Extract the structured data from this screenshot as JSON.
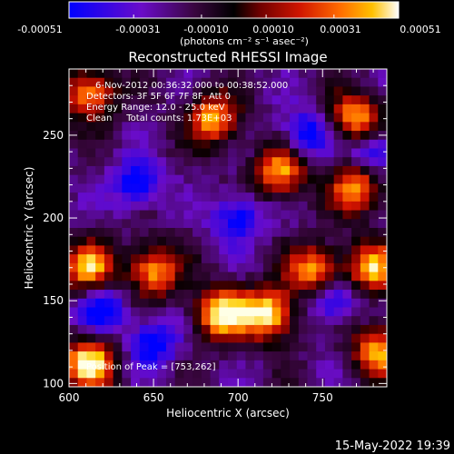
{
  "colorbar": {
    "tick_labels": [
      "-0.00051",
      "-0.00031",
      "-0.00010",
      "0.00010",
      "0.00031",
      "0.00051"
    ],
    "units_label": "(photons cm⁻² s⁻¹ asec⁻²)"
  },
  "plot": {
    "title": "Reconstructed RHESSI Image",
    "info_lines": [
      "6-Nov-2012 00:36:32.000 to 00:38:52.000",
      "Detectors: 3F 5F 6F 7F 8F, Att 0",
      "Energy Range: 12.0 - 25.0 keV",
      "Clean     Total counts: 1.73E+03"
    ],
    "peak_label": "Position of Peak = [753,262]",
    "footer_timestamp": "15-May-2022 19:39"
  },
  "chart_data": {
    "type": "heatmap",
    "title": "Reconstructed RHESSI Image",
    "xlabel": "Heliocentric X (arcsec)",
    "ylabel": "Heliocentric Y (arcsec)",
    "xlim": [
      600,
      788
    ],
    "ylim": [
      98,
      290
    ],
    "x_ticks": [
      600,
      650,
      700,
      750
    ],
    "y_ticks": [
      100,
      150,
      200,
      250
    ],
    "colorbar_range": [
      -0.00051,
      0.00051
    ],
    "colorbar_ticks": [
      -0.00051,
      -0.00031,
      -0.0001,
      0.0001,
      0.00031,
      0.00051
    ],
    "colormap": [
      "#0000ff",
      "#5a00b0",
      "#200020",
      "#000000",
      "#8a0000",
      "#e02000",
      "#ff7000",
      "#ffd000",
      "#ffffe0"
    ],
    "bright_sources_xy": [
      [
        612,
        112
      ],
      [
        690,
        142
      ],
      [
        718,
        142
      ],
      [
        745,
        168
      ],
      [
        612,
        170
      ],
      [
        650,
        168
      ],
      [
        725,
        228
      ],
      [
        770,
        218
      ],
      [
        770,
        260
      ],
      [
        685,
        260
      ],
      [
        612,
        275
      ],
      [
        780,
        170
      ],
      [
        783,
        120
      ]
    ],
    "dark_regions_xy": [
      [
        640,
        220
      ],
      [
        740,
        250
      ],
      [
        755,
        150
      ],
      [
        700,
        200
      ],
      [
        620,
        145
      ],
      [
        650,
        125
      ],
      [
        780,
        240
      ]
    ]
  }
}
